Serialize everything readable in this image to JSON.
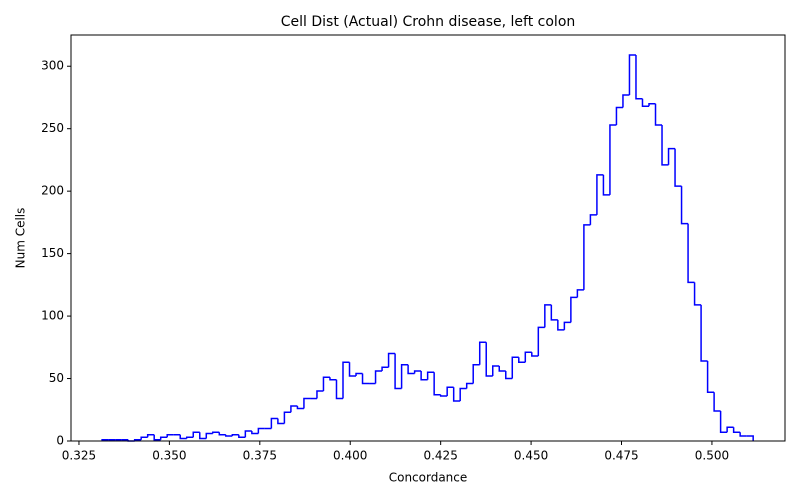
{
  "chart_data": {
    "type": "histogram",
    "title": "Cell Dist (Actual) Crohn disease, left colon",
    "xlabel": "Concordance",
    "ylabel": "Num Cells",
    "color": "#0000ff",
    "bins": [
      0.3314,
      0.3332,
      0.335,
      0.3368,
      0.3386,
      0.3404,
      0.3422,
      0.344,
      0.3458,
      0.3476,
      0.3494,
      0.3512,
      0.353,
      0.3548,
      0.3566,
      0.3584,
      0.3602,
      0.362,
      0.3638,
      0.3656,
      0.3674,
      0.3692,
      0.371,
      0.3728,
      0.3746,
      0.3764,
      0.3782,
      0.38,
      0.3818,
      0.3836,
      0.3854,
      0.3872,
      0.389,
      0.3908,
      0.3926,
      0.3944,
      0.3962,
      0.398,
      0.3998,
      0.4016,
      0.4034,
      0.4052,
      0.407,
      0.4088,
      0.4106,
      0.4124,
      0.4142,
      0.416,
      0.4178,
      0.4196,
      0.4214,
      0.4232,
      0.425,
      0.4268,
      0.4286,
      0.4304,
      0.4322,
      0.434,
      0.4358,
      0.4376,
      0.4394,
      0.4412,
      0.443,
      0.4448,
      0.4466,
      0.4484,
      0.4502,
      0.452,
      0.4538,
      0.4556,
      0.4574,
      0.4592,
      0.461,
      0.4628,
      0.4646,
      0.4664,
      0.4682,
      0.47,
      0.4718,
      0.4736,
      0.4754,
      0.4772,
      0.479,
      0.4808,
      0.4826,
      0.4844,
      0.4862,
      0.488,
      0.4898,
      0.4916,
      0.4934,
      0.4952,
      0.497,
      0.4988,
      0.5006,
      0.5024,
      0.5042,
      0.506,
      0.5078,
      0.5096,
      0.5114
    ],
    "counts": [
      1,
      1,
      1,
      1,
      0,
      1,
      3,
      5,
      1,
      3,
      5,
      5,
      2,
      3,
      7,
      2,
      6,
      7,
      5,
      4,
      5,
      3,
      8,
      6,
      10,
      10,
      18,
      14,
      23,
      28,
      26,
      34,
      34,
      40,
      51,
      49,
      34,
      63,
      52,
      54,
      46,
      46,
      56,
      59,
      70,
      42,
      61,
      54,
      56,
      49,
      55,
      37,
      36,
      43,
      32,
      42,
      46,
      61,
      79,
      52,
      60,
      56,
      50,
      67,
      63,
      71,
      68,
      91,
      109,
      97,
      89,
      95,
      115,
      121,
      173,
      181,
      213,
      197,
      253,
      267,
      277,
      309,
      274,
      268,
      270,
      253,
      221,
      234,
      204,
      174,
      127,
      109,
      64,
      39,
      24,
      7,
      11,
      7,
      4,
      4
    ],
    "xlim": [
      0.3228,
      0.5202
    ],
    "xticks": [
      0.325,
      {
        "value": 0.35,
        "label": "0.350"
      },
      0.375,
      {
        "value": 0.4,
        "label": "0.400"
      },
      0.425,
      {
        "value": 0.45,
        "label": "0.450"
      },
      0.475,
      {
        "value": 0.5,
        "label": "0.500"
      }
    ],
    "ylim": [
      0,
      325
    ],
    "yticks": [
      0,
      50,
      100,
      150,
      200,
      250,
      300
    ]
  }
}
